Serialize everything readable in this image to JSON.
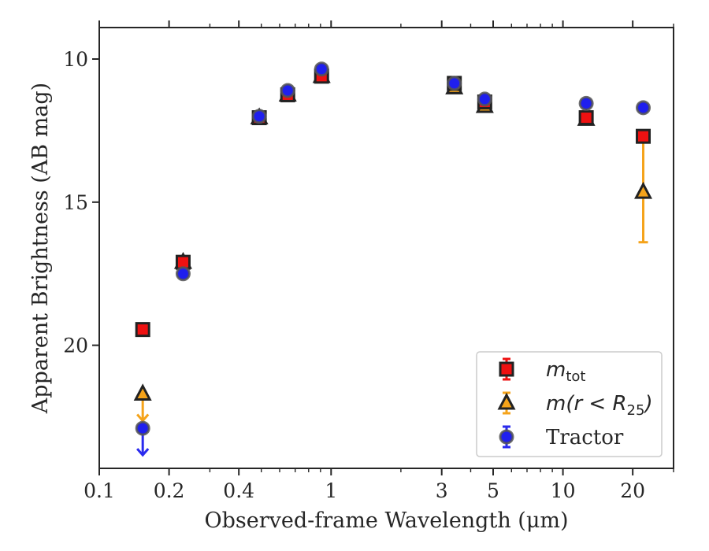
{
  "chart_data": {
    "type": "scatter",
    "xlabel": "Observed-frame Wavelength (μm)",
    "ylabel": "Apparent Brightness (AB mag)",
    "xscale": "log",
    "xlim": [
      0.1,
      30
    ],
    "ylim": [
      24.3,
      8.9
    ],
    "y_inverted": true,
    "x_ticks": [
      0.1,
      0.2,
      0.4,
      1,
      3,
      5,
      10,
      20
    ],
    "x_tick_labels": [
      "0.1",
      "0.2",
      "0.4",
      "1",
      "3",
      "5",
      "10",
      "20"
    ],
    "y_ticks": [
      10,
      15,
      20
    ],
    "y_tick_labels": [
      "10",
      "15",
      "20"
    ],
    "grid": false,
    "legend_position": "lower-right",
    "series": [
      {
        "name": "m_tot",
        "legend_label": "m",
        "legend_sub": "tot",
        "marker": "square",
        "face_color": "#ee1111",
        "edge_color": "#222222",
        "errbar_color": "#ee1111",
        "points": [
          {
            "x": 0.154,
            "y": 19.45,
            "err": 0
          },
          {
            "x": 0.23,
            "y": 17.1,
            "err": 0
          },
          {
            "x": 0.49,
            "y": 12.05,
            "err": 0
          },
          {
            "x": 0.65,
            "y": 11.25,
            "err": 0
          },
          {
            "x": 0.91,
            "y": 10.6,
            "err": 0
          },
          {
            "x": 3.4,
            "y": 10.85,
            "err": 0
          },
          {
            "x": 4.6,
            "y": 11.5,
            "err": 0
          },
          {
            "x": 12.6,
            "y": 12.05,
            "err": 0
          },
          {
            "x": 22.2,
            "y": 12.7,
            "err": 0
          }
        ]
      },
      {
        "name": "m(r<R25)",
        "legend_label": "m(r < R",
        "legend_sub": "25",
        "legend_suffix": ")",
        "marker": "triangle",
        "face_color": "#f5a31a",
        "edge_color": "#222222",
        "errbar_color": "#f5a31a",
        "points": [
          {
            "x": 0.154,
            "y": 21.7,
            "err": 0,
            "upper_limit": true
          },
          {
            "x": 0.23,
            "y": 17.1,
            "err": 0
          },
          {
            "x": 0.49,
            "y": 12.05,
            "err": 0
          },
          {
            "x": 0.65,
            "y": 11.25,
            "err": 0
          },
          {
            "x": 0.91,
            "y": 10.6,
            "err": 0
          },
          {
            "x": 3.4,
            "y": 11.0,
            "err": 0
          },
          {
            "x": 4.6,
            "y": 11.65,
            "err": 0
          },
          {
            "x": 12.6,
            "y": 12.1,
            "err": 0
          },
          {
            "x": 22.2,
            "y": 14.65,
            "err": 1.75
          }
        ]
      },
      {
        "name": "Tractor",
        "legend_label": "Tractor",
        "marker": "circle",
        "face_color": "#1f1fee",
        "edge_color": "#555555",
        "errbar_color": "#2a2aee",
        "points": [
          {
            "x": 0.154,
            "y": 22.9,
            "err": 0,
            "upper_limit": true
          },
          {
            "x": 0.23,
            "y": 17.5,
            "err": 0
          },
          {
            "x": 0.49,
            "y": 12.0,
            "err": 0
          },
          {
            "x": 0.65,
            "y": 11.1,
            "err": 0
          },
          {
            "x": 0.91,
            "y": 10.35,
            "err": 0
          },
          {
            "x": 3.4,
            "y": 10.85,
            "err": 0
          },
          {
            "x": 4.6,
            "y": 11.4,
            "err": 0
          },
          {
            "x": 12.6,
            "y": 11.55,
            "err": 0
          },
          {
            "x": 22.2,
            "y": 11.7,
            "err": 0
          }
        ]
      }
    ]
  }
}
